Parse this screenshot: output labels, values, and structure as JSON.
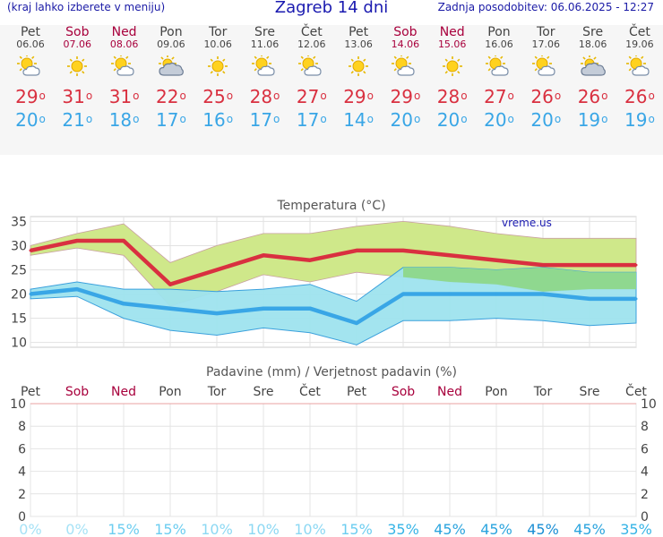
{
  "header": {
    "menu_hint": "(kraj lahko izberete v meniju)",
    "title": "Zagreb 14 dni",
    "updated": "Zadnja posodobitev: 06.06.2025 - 12:27"
  },
  "days": [
    {
      "name": "Pet",
      "date": "06.06",
      "weekend": false,
      "icon": "partly-cloudy-icon",
      "tmax": "29",
      "tmin": "20"
    },
    {
      "name": "Sob",
      "date": "07.06",
      "weekend": true,
      "icon": "sun-icon",
      "tmax": "31",
      "tmin": "21"
    },
    {
      "name": "Ned",
      "date": "08.06",
      "weekend": true,
      "icon": "partly-cloudy-icon",
      "tmax": "31",
      "tmin": "18"
    },
    {
      "name": "Pon",
      "date": "09.06",
      "weekend": false,
      "icon": "cloudy-icon",
      "tmax": "22",
      "tmin": "17"
    },
    {
      "name": "Tor",
      "date": "10.06",
      "weekend": false,
      "icon": "sun-icon",
      "tmax": "25",
      "tmin": "16"
    },
    {
      "name": "Sre",
      "date": "11.06",
      "weekend": false,
      "icon": "partly-cloudy-icon",
      "tmax": "28",
      "tmin": "17"
    },
    {
      "name": "Čet",
      "date": "12.06",
      "weekend": false,
      "icon": "partly-cloudy-icon",
      "tmax": "27",
      "tmin": "17"
    },
    {
      "name": "Pet",
      "date": "13.06",
      "weekend": false,
      "icon": "sun-icon",
      "tmax": "29",
      "tmin": "14"
    },
    {
      "name": "Sob",
      "date": "14.06",
      "weekend": true,
      "icon": "partly-cloudy-icon",
      "tmax": "29",
      "tmin": "20"
    },
    {
      "name": "Ned",
      "date": "15.06",
      "weekend": true,
      "icon": "sun-icon",
      "tmax": "28",
      "tmin": "20"
    },
    {
      "name": "Pon",
      "date": "16.06",
      "weekend": false,
      "icon": "partly-cloudy-icon",
      "tmax": "27",
      "tmin": "20"
    },
    {
      "name": "Tor",
      "date": "17.06",
      "weekend": false,
      "icon": "partly-cloudy-icon",
      "tmax": "26",
      "tmin": "20"
    },
    {
      "name": "Sre",
      "date": "18.06",
      "weekend": false,
      "icon": "cloudy-icon",
      "tmax": "26",
      "tmin": "19"
    },
    {
      "name": "Čet",
      "date": "19.06",
      "weekend": false,
      "icon": "partly-cloudy-icon",
      "tmax": "26",
      "tmin": "19"
    }
  ],
  "deg_symbol": "o",
  "colors": {
    "tmax": "#d93040",
    "tmin": "#39a6e6",
    "weekend": "#a8003c",
    "max_band": "#cfe88a",
    "min_band": "#9ee3ee",
    "overlap": "#8fd88f"
  },
  "chart_data": [
    {
      "type": "line",
      "title": "Temperatura (°C)",
      "watermark": "vreme.us",
      "ylim": [
        9,
        36
      ],
      "yticks": [
        10,
        15,
        20,
        25,
        30,
        35
      ],
      "grid": true,
      "categories": [
        "06.06",
        "07.06",
        "08.06",
        "09.06",
        "10.06",
        "11.06",
        "12.06",
        "13.06",
        "14.06",
        "15.06",
        "16.06",
        "17.06",
        "18.06",
        "19.06"
      ],
      "series": [
        {
          "role": "tmax",
          "values": [
            29,
            31,
            31,
            22,
            25,
            28,
            27,
            29,
            29,
            28,
            27,
            26,
            26,
            26
          ]
        },
        {
          "role": "tmin",
          "values": [
            20,
            21,
            18,
            17,
            16,
            17,
            17,
            14,
            20,
            20,
            20,
            20,
            19,
            19
          ]
        }
      ],
      "bands": [
        {
          "role": "tmax-range",
          "upper": [
            30,
            32.5,
            34.5,
            26.5,
            30,
            32.5,
            32.5,
            34,
            35,
            34,
            32.5,
            31.5,
            31.5,
            31.5
          ],
          "lower": [
            28,
            29.5,
            28,
            17.5,
            20.5,
            24,
            22.5,
            24.5,
            23.5,
            22.5,
            22,
            20.5,
            21,
            21
          ]
        },
        {
          "role": "tmin-range",
          "upper": [
            21,
            22.5,
            21,
            21,
            20.5,
            21,
            22,
            18.5,
            25.5,
            25.5,
            25,
            25.5,
            24.5,
            24.5
          ],
          "lower": [
            19,
            19.5,
            15,
            12.5,
            11.5,
            13,
            12,
            9.5,
            14.5,
            14.5,
            15,
            14.5,
            13.5,
            14
          ]
        }
      ]
    },
    {
      "type": "bar",
      "title": "Padavine (mm) / Verjetnost padavin (%)",
      "ylim": [
        0,
        10
      ],
      "yticks": [
        0,
        2,
        4,
        6,
        8,
        10
      ],
      "grid": true,
      "categories": [
        "Pet",
        "Sob",
        "Ned",
        "Pon",
        "Tor",
        "Sre",
        "Čet",
        "Pet",
        "Sob",
        "Ned",
        "Pon",
        "Tor",
        "Sre",
        "Čet"
      ],
      "weekend": [
        false,
        true,
        true,
        false,
        false,
        false,
        false,
        false,
        true,
        true,
        false,
        false,
        false,
        false
      ],
      "precip_mm": [
        0,
        0,
        0,
        0,
        0,
        0,
        0,
        0,
        0,
        0,
        0,
        0,
        0,
        0
      ],
      "probability": [
        "0%",
        "0%",
        "15%",
        "15%",
        "10%",
        "10%",
        "10%",
        "15%",
        "35%",
        "45%",
        "45%",
        "45%",
        "45%",
        "35%"
      ],
      "probability_colors": [
        "#a6e2f6",
        "#a6e2f6",
        "#6ccdf0",
        "#6ccdf0",
        "#8cd8f3",
        "#8cd8f3",
        "#8cd8f3",
        "#6ccdf0",
        "#36b4e6",
        "#2aa4de",
        "#2aa4de",
        "#1a8ed4",
        "#2aa4de",
        "#36b4e6"
      ]
    }
  ]
}
